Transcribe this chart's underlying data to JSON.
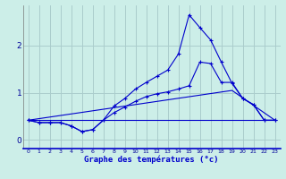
{
  "xlabel": "Graphe des températures (°c)",
  "background_color": "#cceee8",
  "line_color": "#0000cc",
  "grid_color": "#aacccc",
  "xlim": [
    -0.5,
    23.5
  ],
  "ylim": [
    -0.18,
    2.85
  ],
  "yticks": [
    0,
    1,
    2
  ],
  "xticks": [
    0,
    1,
    2,
    3,
    4,
    5,
    6,
    7,
    8,
    9,
    10,
    11,
    12,
    13,
    14,
    15,
    16,
    17,
    18,
    19,
    20,
    21,
    22,
    23
  ],
  "curve1_x": [
    0,
    1,
    2,
    3,
    4,
    5,
    6,
    7,
    8,
    9,
    10,
    11,
    12,
    13,
    14,
    15,
    16,
    17,
    18,
    19,
    20,
    21,
    22,
    23
  ],
  "curve1_y": [
    0.42,
    0.37,
    0.37,
    0.37,
    0.3,
    0.18,
    0.22,
    0.42,
    0.72,
    0.88,
    1.08,
    1.22,
    1.35,
    1.48,
    1.82,
    2.65,
    2.38,
    2.12,
    1.65,
    1.2,
    0.88,
    0.75,
    0.42,
    0.42
  ],
  "curve2_x": [
    0,
    1,
    2,
    3,
    4,
    5,
    6,
    7,
    8,
    9,
    10,
    11,
    12,
    13,
    14,
    15,
    16,
    17,
    18,
    19,
    20,
    21,
    22,
    23
  ],
  "curve2_y": [
    0.42,
    0.37,
    0.37,
    0.37,
    0.3,
    0.18,
    0.22,
    0.42,
    0.58,
    0.7,
    0.82,
    0.92,
    0.98,
    1.02,
    1.08,
    1.15,
    1.65,
    1.62,
    1.22,
    1.22,
    0.88,
    0.75,
    0.42,
    0.42
  ],
  "line1_x": [
    0,
    23
  ],
  "line1_y": [
    0.42,
    0.42
  ],
  "line2_x": [
    0,
    19,
    23
  ],
  "line2_y": [
    0.42,
    1.05,
    0.42
  ]
}
